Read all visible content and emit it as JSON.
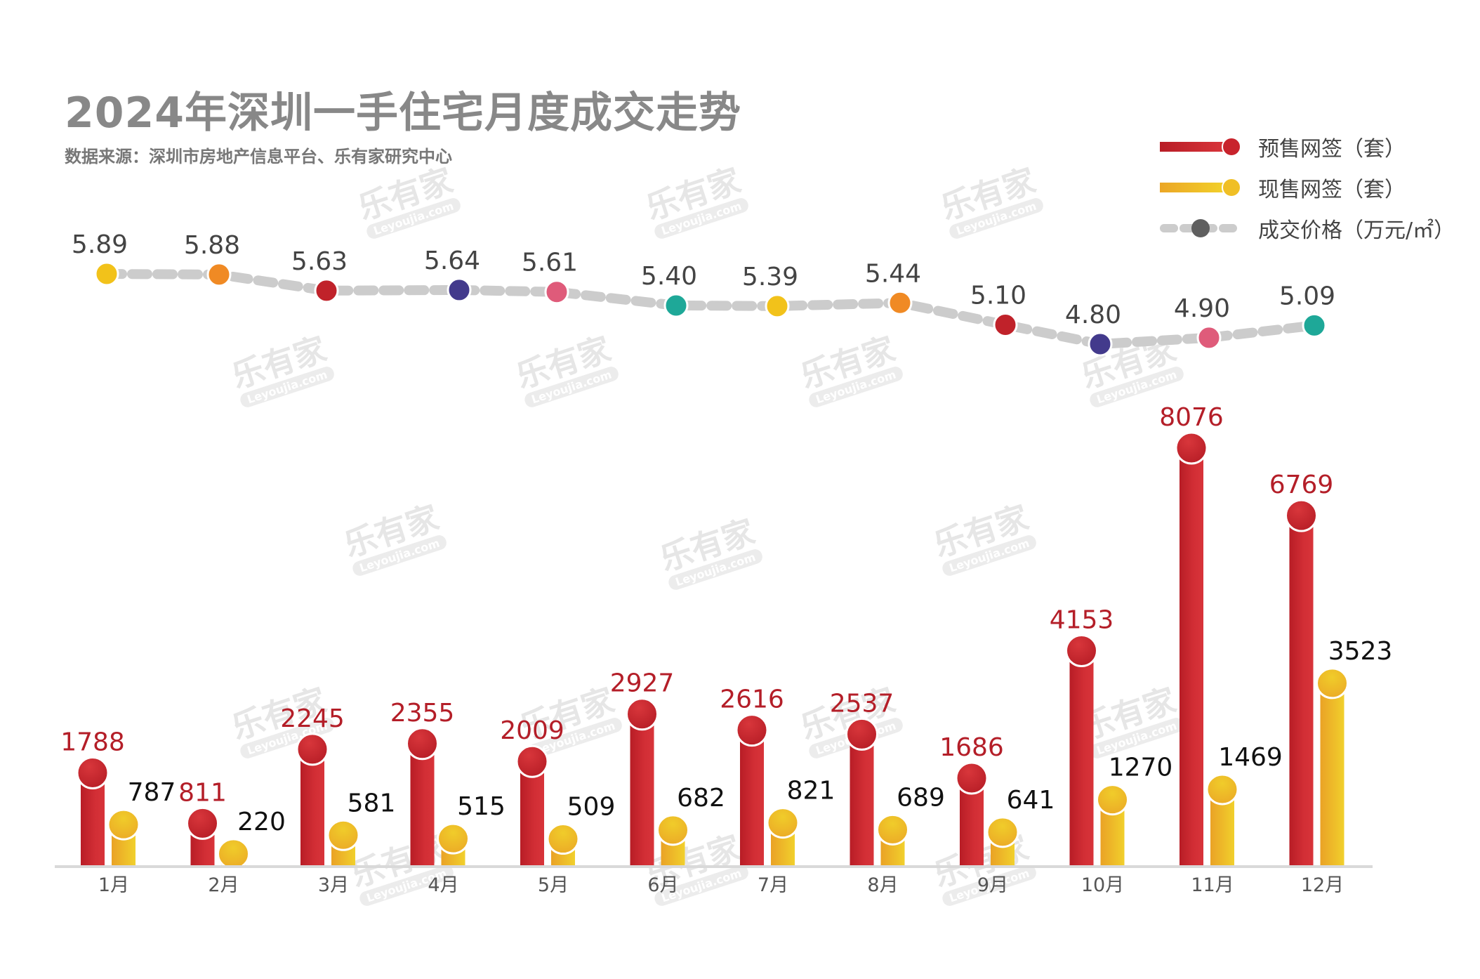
{
  "title": "2024年深圳一手住宅月度成交走势",
  "subtitle": "数据来源：深圳市房地产信息平台、乐有家研究中心",
  "watermark": {
    "brand": "乐有家",
    "site": "Leyoujia.com"
  },
  "legend": [
    {
      "label": "预售网签（套）",
      "icon": "red-bar-dot-icon"
    },
    {
      "label": "现售网签（套）",
      "icon": "yellow-bar-dot-icon"
    },
    {
      "label": "成交价格（万元/㎡）",
      "icon": "gray-dashed-line-dot-icon"
    }
  ],
  "colors": {
    "presale": "#c8232c",
    "existing": "#f0c020",
    "price_line": "#cccccc",
    "presale_label": "#b41e28",
    "existing_label": "#111111",
    "price_label": "#444444",
    "axis": "#d9d9d9",
    "price_markers": [
      "#f2c21a",
      "#f08a24",
      "#c0222a",
      "#433a8c",
      "#df5b7a",
      "#1ea898",
      "#f2c21a",
      "#f08a24",
      "#c0222a",
      "#433a8c",
      "#df5b7a",
      "#1ea898"
    ]
  },
  "chart_data": {
    "type": "bar",
    "title": "2024年深圳一手住宅月度成交走势",
    "subtitle": "数据来源：深圳市房地产信息平台、乐有家研究中心",
    "xlabel": "",
    "ylabel": "",
    "categories": [
      "1月",
      "2月",
      "3月",
      "4月",
      "5月",
      "6月",
      "7月",
      "8月",
      "9月",
      "10月",
      "11月",
      "12月"
    ],
    "series": [
      {
        "name": "预售网签（套）",
        "type": "bar",
        "values": [
          1788,
          811,
          2245,
          2355,
          2009,
          2927,
          2616,
          2537,
          1686,
          4153,
          8076,
          6769
        ]
      },
      {
        "name": "现售网签（套）",
        "type": "bar",
        "values": [
          787,
          220,
          581,
          515,
          509,
          682,
          821,
          689,
          641,
          1270,
          1469,
          3523
        ]
      },
      {
        "name": "成交价格（万元/㎡）",
        "type": "line",
        "values": [
          5.89,
          5.88,
          5.63,
          5.64,
          5.61,
          5.4,
          5.39,
          5.44,
          5.1,
          4.8,
          4.9,
          5.09
        ]
      }
    ],
    "ylim_bars": [
      0,
      9000
    ],
    "ylim_price": [
      4.6,
      6.0
    ],
    "grid": false,
    "legend_position": "top-right"
  }
}
